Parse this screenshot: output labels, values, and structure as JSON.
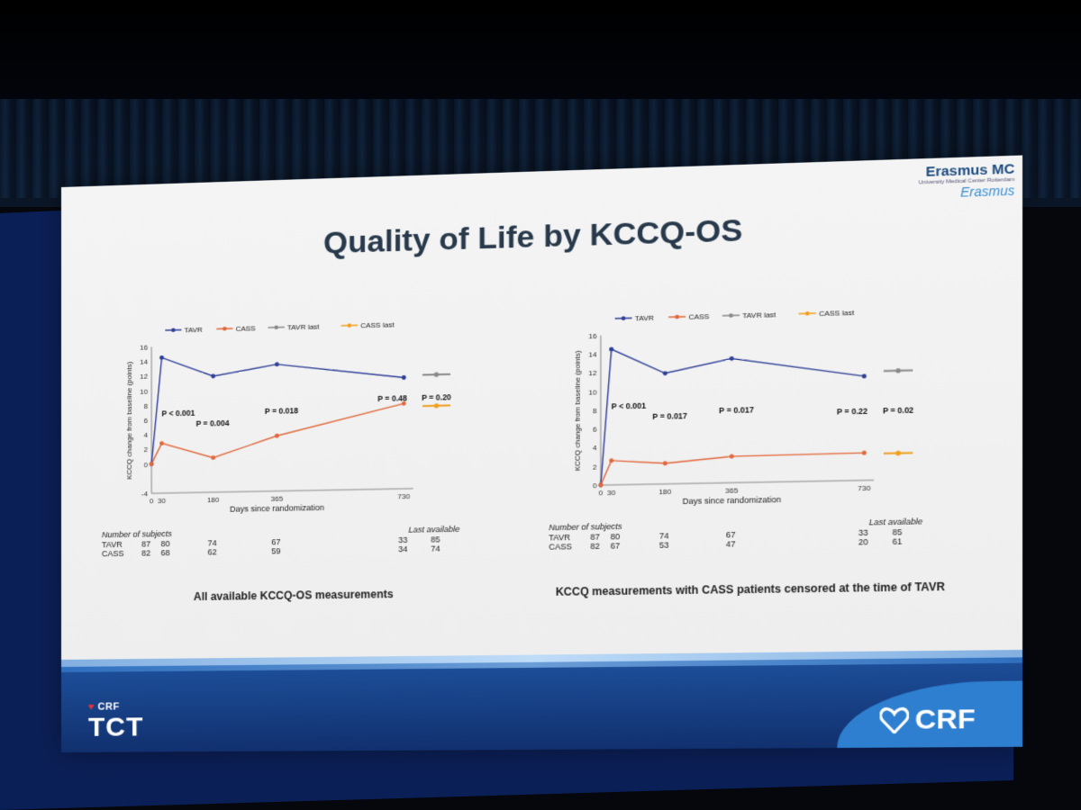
{
  "slide": {
    "title": "Quality of Life by KCCQ-OS",
    "institution": "Erasmus MC",
    "institution_sub": "University Medical Center Rotterdam",
    "signature": "Erasmus",
    "footer_left_top": "CRF",
    "footer_left_big": "TCT",
    "footer_right": "CRF"
  },
  "colors": {
    "tavr": "#2f3f98",
    "cass": "#e2673a",
    "tavr_last": "#8a8a8a",
    "cass_last": "#f0a020"
  },
  "chart_data": [
    {
      "type": "line",
      "xlabel": "Days since randomization",
      "ylabel": "KCCQ change from baseline (points)",
      "ylim": [
        -4,
        16
      ],
      "yticks": [
        -4,
        0,
        2,
        4,
        6,
        8,
        10,
        12,
        14,
        16
      ],
      "xticks": [
        0,
        30,
        180,
        365,
        730
      ],
      "xlim": [
        0,
        730
      ],
      "legend_position": "top",
      "legend": [
        "TAVR",
        "CASS",
        "TAVR last",
        "CASS last"
      ],
      "series": [
        {
          "name": "TAVR",
          "x": [
            0,
            30,
            180,
            365,
            730
          ],
          "y": [
            0,
            14.5,
            11.8,
            13.2,
            11.0
          ]
        },
        {
          "name": "CASS",
          "x": [
            0,
            30,
            180,
            365,
            730
          ],
          "y": [
            0,
            2.8,
            0.7,
            3.5,
            7.5
          ]
        }
      ],
      "last_available": [
        {
          "name": "TAVR last",
          "y": 11.3
        },
        {
          "name": "CASS last",
          "y": 7.1
        }
      ],
      "annotations": [
        {
          "text": "P < 0.001",
          "x": 30,
          "y": 6.5
        },
        {
          "text": "P = 0.004",
          "x": 130,
          "y": 5.0
        },
        {
          "text": "P = 0.018",
          "x": 330,
          "y": 6.5
        },
        {
          "text": "P = 0.48",
          "x": 655,
          "y": 7.8
        },
        {
          "text": "P = 0.20",
          "last": true,
          "y": 7.8
        }
      ],
      "subjects": {
        "header": "Number of subjects",
        "last_header": "Last available",
        "rows": [
          {
            "label": "TAVR",
            "values": [
              "87",
              "80",
              "74",
              "67",
              "33"
            ],
            "last": "85"
          },
          {
            "label": "CASS",
            "values": [
              "82",
              "68",
              "62",
              "59",
              "34"
            ],
            "last": "74"
          }
        ]
      },
      "caption": "All available KCCQ-OS measurements"
    },
    {
      "type": "line",
      "xlabel": "Days since randomization",
      "ylabel": "KCCQ change from baseline (points)",
      "ylim": [
        0,
        16
      ],
      "yticks": [
        0,
        2,
        4,
        6,
        8,
        10,
        12,
        14,
        16
      ],
      "xticks": [
        0,
        30,
        180,
        365,
        730
      ],
      "xlim": [
        0,
        730
      ],
      "legend_position": "top",
      "legend": [
        "TAVR",
        "CASS",
        "TAVR last",
        "CASS last"
      ],
      "series": [
        {
          "name": "TAVR",
          "x": [
            0,
            30,
            180,
            365,
            730
          ],
          "y": [
            0,
            14.5,
            11.8,
            13.2,
            11.0
          ]
        },
        {
          "name": "CASS",
          "x": [
            0,
            30,
            180,
            365,
            730
          ],
          "y": [
            0,
            2.6,
            2.2,
            2.8,
            2.9
          ]
        }
      ],
      "last_available": [
        {
          "name": "TAVR last",
          "y": 11.5
        },
        {
          "name": "CASS last",
          "y": 2.8
        }
      ],
      "annotations": [
        {
          "text": "P < 0.001",
          "x": 30,
          "y": 8.1
        },
        {
          "text": "P = 0.017",
          "x": 145,
          "y": 6.9
        },
        {
          "text": "P = 0.017",
          "x": 330,
          "y": 7.4
        },
        {
          "text": "P = 0.22",
          "x": 655,
          "y": 7.0
        },
        {
          "text": "P = 0.02",
          "last": true,
          "y": 7.0
        }
      ],
      "subjects": {
        "header": "Number of subjects",
        "last_header": "Last available",
        "rows": [
          {
            "label": "TAVR",
            "values": [
              "87",
              "80",
              "74",
              "67",
              "33"
            ],
            "last": "85"
          },
          {
            "label": "CASS",
            "values": [
              "82",
              "67",
              "53",
              "47",
              "20"
            ],
            "last": "61"
          }
        ]
      },
      "caption": "KCCQ measurements with CASS patients censored at the time of TAVR"
    }
  ]
}
